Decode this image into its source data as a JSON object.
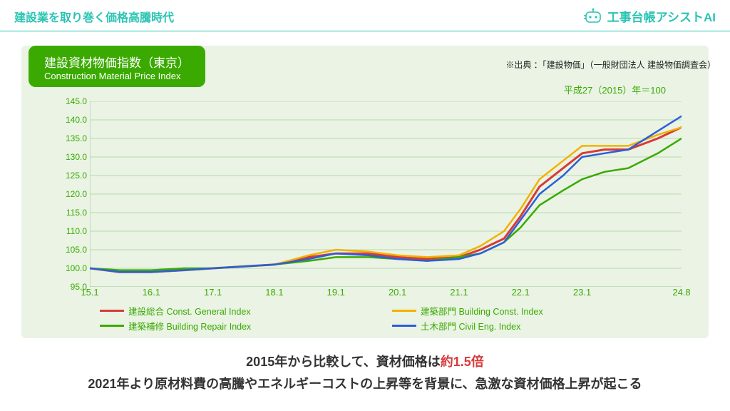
{
  "header": {
    "left_title": "建設業を取り巻く価格高騰時代",
    "right_brand": "工事台帳アシストAI"
  },
  "chart": {
    "type": "line",
    "badge_jp": "建設資材物価指数（東京）",
    "badge_en": "Construction Material Price Index",
    "source_note": "※出典 ：「建設物価」（一般財団法人 建設物価調査会）",
    "baseline_note": "平成27（2015）年＝100",
    "background_color": "#eaf3e4",
    "badge_bg": "#3aaa00",
    "axis_text_color": "#3aaa00",
    "plot_bg": "#eaf3e4",
    "grid_color": "#a9cfa0",
    "ylim": [
      95,
      145
    ],
    "ytick_step": 5,
    "yticks": [
      145,
      140,
      135,
      130,
      125,
      120,
      115,
      110,
      105,
      100,
      95
    ],
    "xticks": [
      {
        "label": "15.1",
        "pos": 0.0
      },
      {
        "label": "16.1",
        "pos": 0.104
      },
      {
        "label": "17.1",
        "pos": 0.208
      },
      {
        "label": "18.1",
        "pos": 0.312
      },
      {
        "label": "19.1",
        "pos": 0.416
      },
      {
        "label": "20.1",
        "pos": 0.52
      },
      {
        "label": "21.1",
        "pos": 0.624
      },
      {
        "label": "22.1",
        "pos": 0.728
      },
      {
        "label": "23.1",
        "pos": 0.832
      },
      {
        "label": "24.8",
        "pos": 1.0
      }
    ],
    "series": [
      {
        "key": "general",
        "label": "建設総合  Const. General  Index",
        "color": "#d83a3a",
        "width": 3,
        "x": [
          0,
          0.05,
          0.104,
          0.16,
          0.208,
          0.26,
          0.312,
          0.37,
          0.416,
          0.47,
          0.52,
          0.57,
          0.624,
          0.66,
          0.7,
          0.728,
          0.76,
          0.8,
          0.832,
          0.87,
          0.91,
          0.96,
          1.0
        ],
        "y": [
          100,
          99,
          99,
          99.5,
          100,
          100.5,
          101,
          103,
          104,
          104,
          103,
          102.5,
          103,
          105,
          108,
          114,
          122,
          127,
          131,
          132,
          132,
          135,
          138
        ]
      },
      {
        "key": "building",
        "label": "建築部門  Building Const. Index",
        "color": "#f2b200",
        "width": 2.5,
        "x": [
          0,
          0.05,
          0.104,
          0.16,
          0.208,
          0.26,
          0.312,
          0.37,
          0.416,
          0.47,
          0.52,
          0.57,
          0.624,
          0.66,
          0.7,
          0.728,
          0.76,
          0.8,
          0.832,
          0.87,
          0.91,
          0.96,
          1.0
        ],
        "y": [
          100,
          99,
          99,
          99.5,
          100,
          100.5,
          101,
          103.5,
          105,
          104.5,
          103.5,
          103,
          103.5,
          106,
          110,
          116,
          124,
          129,
          133,
          133,
          133,
          136,
          138
        ]
      },
      {
        "key": "repair",
        "label": "建築補修  Building Repair Index",
        "color": "#3aaa00",
        "width": 2.5,
        "x": [
          0,
          0.05,
          0.104,
          0.16,
          0.208,
          0.26,
          0.312,
          0.37,
          0.416,
          0.47,
          0.52,
          0.57,
          0.624,
          0.66,
          0.7,
          0.728,
          0.76,
          0.8,
          0.832,
          0.87,
          0.91,
          0.96,
          1.0
        ],
        "y": [
          100,
          99.5,
          99.5,
          100,
          100,
          100.5,
          101,
          102,
          103,
          103,
          102.5,
          102,
          103,
          104,
          107,
          111,
          117,
          121,
          124,
          126,
          127,
          131,
          135
        ]
      },
      {
        "key": "civil",
        "label": "土木部門  Civil Eng. Index",
        "color": "#2b5fd8",
        "width": 2.5,
        "x": [
          0,
          0.05,
          0.104,
          0.16,
          0.208,
          0.26,
          0.312,
          0.37,
          0.416,
          0.47,
          0.52,
          0.57,
          0.624,
          0.66,
          0.7,
          0.728,
          0.76,
          0.8,
          0.832,
          0.87,
          0.91,
          0.96,
          1.0
        ],
        "y": [
          100,
          99,
          99,
          99.5,
          100,
          100.5,
          101,
          102.5,
          104,
          103.5,
          102.5,
          102,
          102.5,
          104,
          107,
          113,
          120,
          125,
          130,
          131,
          132,
          137,
          141
        ]
      }
    ],
    "legend_order": [
      "general",
      "building",
      "repair",
      "civil"
    ]
  },
  "caption": {
    "line1_pre": "2015年から比較して、資材価格は",
    "line1_emph": "約1.5倍",
    "line2": "2021年より原材料費の高騰やエネルギーコストの上昇等を背景に、急激な資材価格上昇が起こる"
  }
}
